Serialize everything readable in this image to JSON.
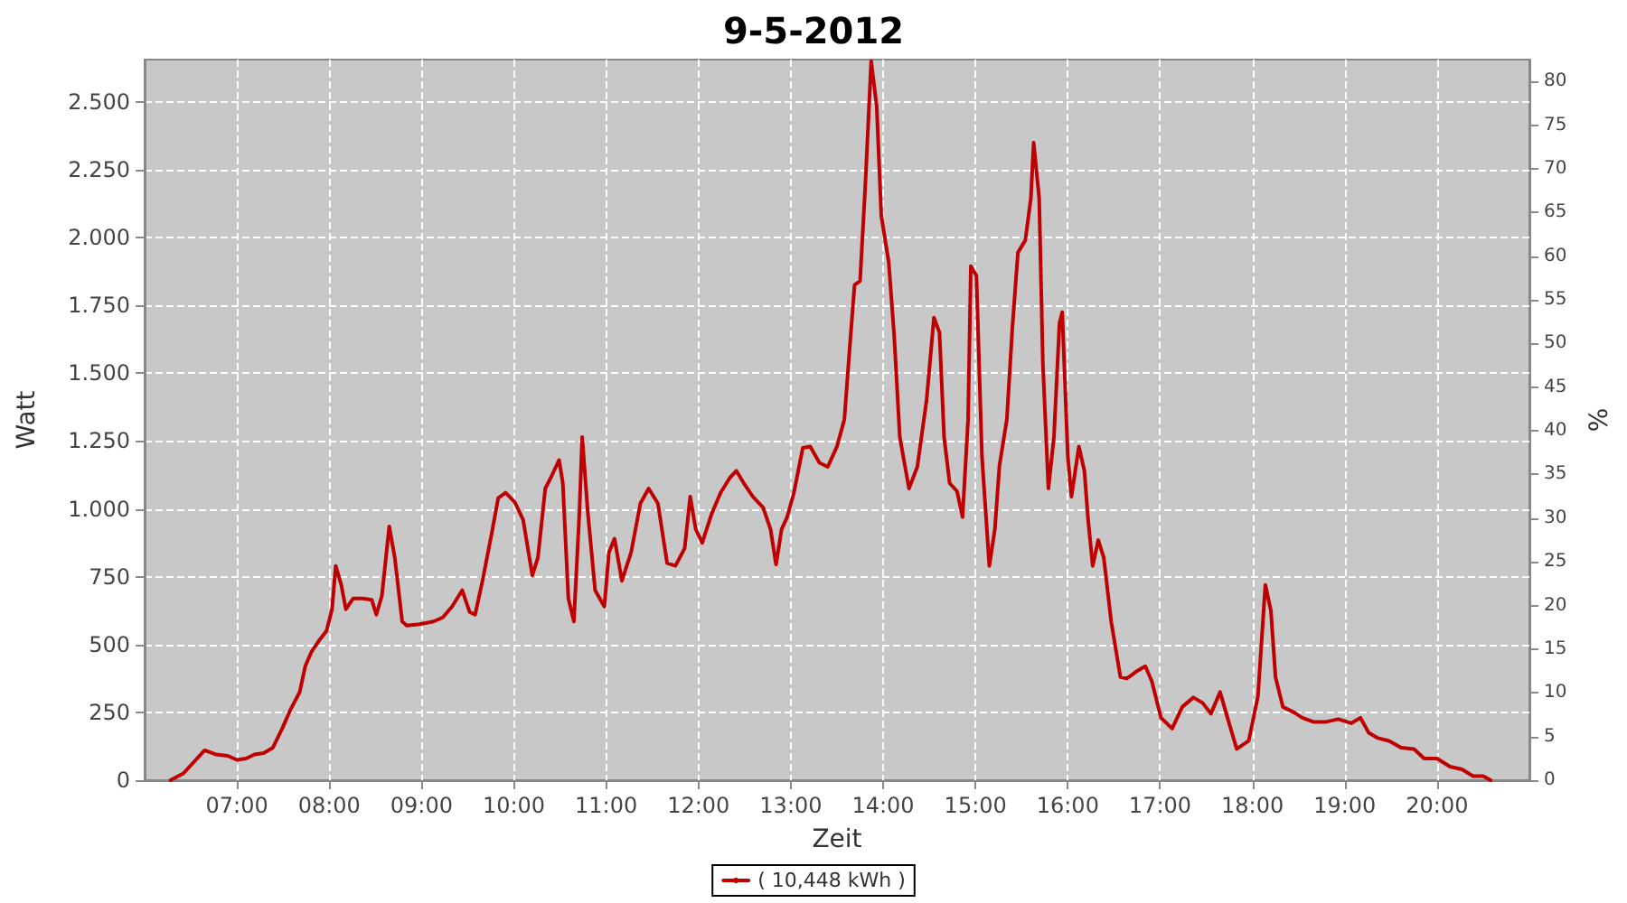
{
  "chart_data": {
    "type": "line",
    "title": "9-5-2012",
    "xlabel": "Zeit",
    "ylabel": "Watt",
    "y2label": "%",
    "xlim": [
      6,
      21
    ],
    "xticks": [
      {
        "value": 7,
        "label": "07:00"
      },
      {
        "value": 8,
        "label": "08:00"
      },
      {
        "value": 9,
        "label": "09:00"
      },
      {
        "value": 10,
        "label": "10:00"
      },
      {
        "value": 11,
        "label": "11:00"
      },
      {
        "value": 12,
        "label": "12:00"
      },
      {
        "value": 13,
        "label": "13:00"
      },
      {
        "value": 14,
        "label": "14:00"
      },
      {
        "value": 15,
        "label": "15:00"
      },
      {
        "value": 16,
        "label": "16:00"
      },
      {
        "value": 17,
        "label": "17:00"
      },
      {
        "value": 18,
        "label": "18:00"
      },
      {
        "value": 19,
        "label": "19:00"
      },
      {
        "value": 20,
        "label": "20:00"
      }
    ],
    "ylim": [
      0,
      2656
    ],
    "yticks": [
      0,
      250,
      500,
      750,
      {
        "value": 1000,
        "label": "1.000"
      },
      {
        "value": 1250,
        "label": "1.250"
      },
      {
        "value": 1500,
        "label": "1.500"
      },
      {
        "value": 1750,
        "label": "1.750"
      },
      {
        "value": 2000,
        "label": "2.000"
      },
      {
        "value": 2250,
        "label": "2.250"
      },
      {
        "value": 2500,
        "label": "2.500"
      }
    ],
    "y2lim": [
      0,
      82.5
    ],
    "y2ticks": [
      0,
      5,
      10,
      15,
      20,
      25,
      30,
      35,
      40,
      45,
      50,
      55,
      60,
      65,
      70,
      75,
      80
    ],
    "grid": true,
    "legend": "bottom",
    "marker": "none",
    "line_style": "solid",
    "series": [
      {
        "name": "( 10,448 kWh )",
        "color": "#c00000",
        "x": [
          6.28,
          6.42,
          6.65,
          6.77,
          6.9,
          7.0,
          7.1,
          7.19,
          7.29,
          7.39,
          7.49,
          7.58,
          7.68,
          7.74,
          7.81,
          7.89,
          7.97,
          8.03,
          8.07,
          8.13,
          8.18,
          8.26,
          8.36,
          8.46,
          8.51,
          8.57,
          8.65,
          8.71,
          8.79,
          8.84,
          8.98,
          9.13,
          9.23,
          9.33,
          9.44,
          9.52,
          9.58,
          9.66,
          9.76,
          9.83,
          9.91,
          10.01,
          10.1,
          10.2,
          10.26,
          10.34,
          10.4,
          10.49,
          10.53,
          10.59,
          10.65,
          10.71,
          10.74,
          10.8,
          10.88,
          10.98,
          11.03,
          11.09,
          11.17,
          11.27,
          11.37,
          11.46,
          11.56,
          11.66,
          11.75,
          11.85,
          11.91,
          11.97,
          12.04,
          12.14,
          12.24,
          12.34,
          12.41,
          12.49,
          12.59,
          12.7,
          12.78,
          12.84,
          12.9,
          12.96,
          13.03,
          13.13,
          13.21,
          13.31,
          13.4,
          13.5,
          13.58,
          13.64,
          13.69,
          13.75,
          13.81,
          13.87,
          13.93,
          13.98,
          14.06,
          14.12,
          14.18,
          14.28,
          14.37,
          14.47,
          14.55,
          14.61,
          14.66,
          14.72,
          14.8,
          14.86,
          14.92,
          14.95,
          15.01,
          15.07,
          15.15,
          15.21,
          15.26,
          15.34,
          15.4,
          15.46,
          15.54,
          15.6,
          15.63,
          15.69,
          15.73,
          15.79,
          15.85,
          15.91,
          15.94,
          16.0,
          16.04,
          16.12,
          16.18,
          16.22,
          16.27,
          16.33,
          16.39,
          16.47,
          16.57,
          16.64,
          16.74,
          16.84,
          16.91,
          17.01,
          17.13,
          17.24,
          17.36,
          17.46,
          17.55,
          17.65,
          17.73,
          17.83,
          17.96,
          18.06,
          18.14,
          18.2,
          18.25,
          18.33,
          18.45,
          18.54,
          18.66,
          18.8,
          18.93,
          19.07,
          19.17,
          19.26,
          19.36,
          19.48,
          19.61,
          19.75,
          19.86,
          20.0,
          20.14,
          20.27,
          20.39,
          20.5,
          20.58
        ],
        "values": [
          0,
          25,
          110,
          95,
          90,
          75,
          80,
          95,
          100,
          120,
          190,
          260,
          325,
          420,
          475,
          515,
          550,
          630,
          790,
          720,
          630,
          670,
          670,
          665,
          610,
          680,
          935,
          820,
          585,
          570,
          575,
          585,
          600,
          640,
          700,
          620,
          610,
          735,
          910,
          1040,
          1060,
          1025,
          960,
          755,
          820,
          1075,
          1115,
          1180,
          1095,
          670,
          585,
          990,
          1265,
          990,
          700,
          640,
          840,
          890,
          735,
          840,
          1020,
          1075,
          1020,
          800,
          790,
          855,
          1045,
          925,
          875,
          980,
          1060,
          1115,
          1140,
          1095,
          1045,
          1005,
          925,
          795,
          925,
          970,
          1055,
          1225,
          1230,
          1170,
          1155,
          1230,
          1330,
          1605,
          1825,
          1840,
          2215,
          2650,
          2485,
          2080,
          1910,
          1635,
          1265,
          1075,
          1155,
          1400,
          1705,
          1650,
          1265,
          1095,
          1065,
          970,
          1330,
          1895,
          1860,
          1195,
          790,
          925,
          1160,
          1330,
          1670,
          1945,
          1990,
          2145,
          2350,
          2145,
          1535,
          1075,
          1265,
          1685,
          1725,
          1195,
          1045,
          1230,
          1140,
          960,
          790,
          885,
          820,
          585,
          380,
          375,
          400,
          420,
          365,
          230,
          190,
          270,
          305,
          285,
          245,
          325,
          230,
          115,
          145,
          310,
          720,
          625,
          380,
          270,
          250,
          230,
          215,
          215,
          225,
          210,
          230,
          175,
          155,
          145,
          120,
          115,
          80,
          80,
          50,
          40,
          15,
          15,
          0
        ]
      }
    ]
  }
}
